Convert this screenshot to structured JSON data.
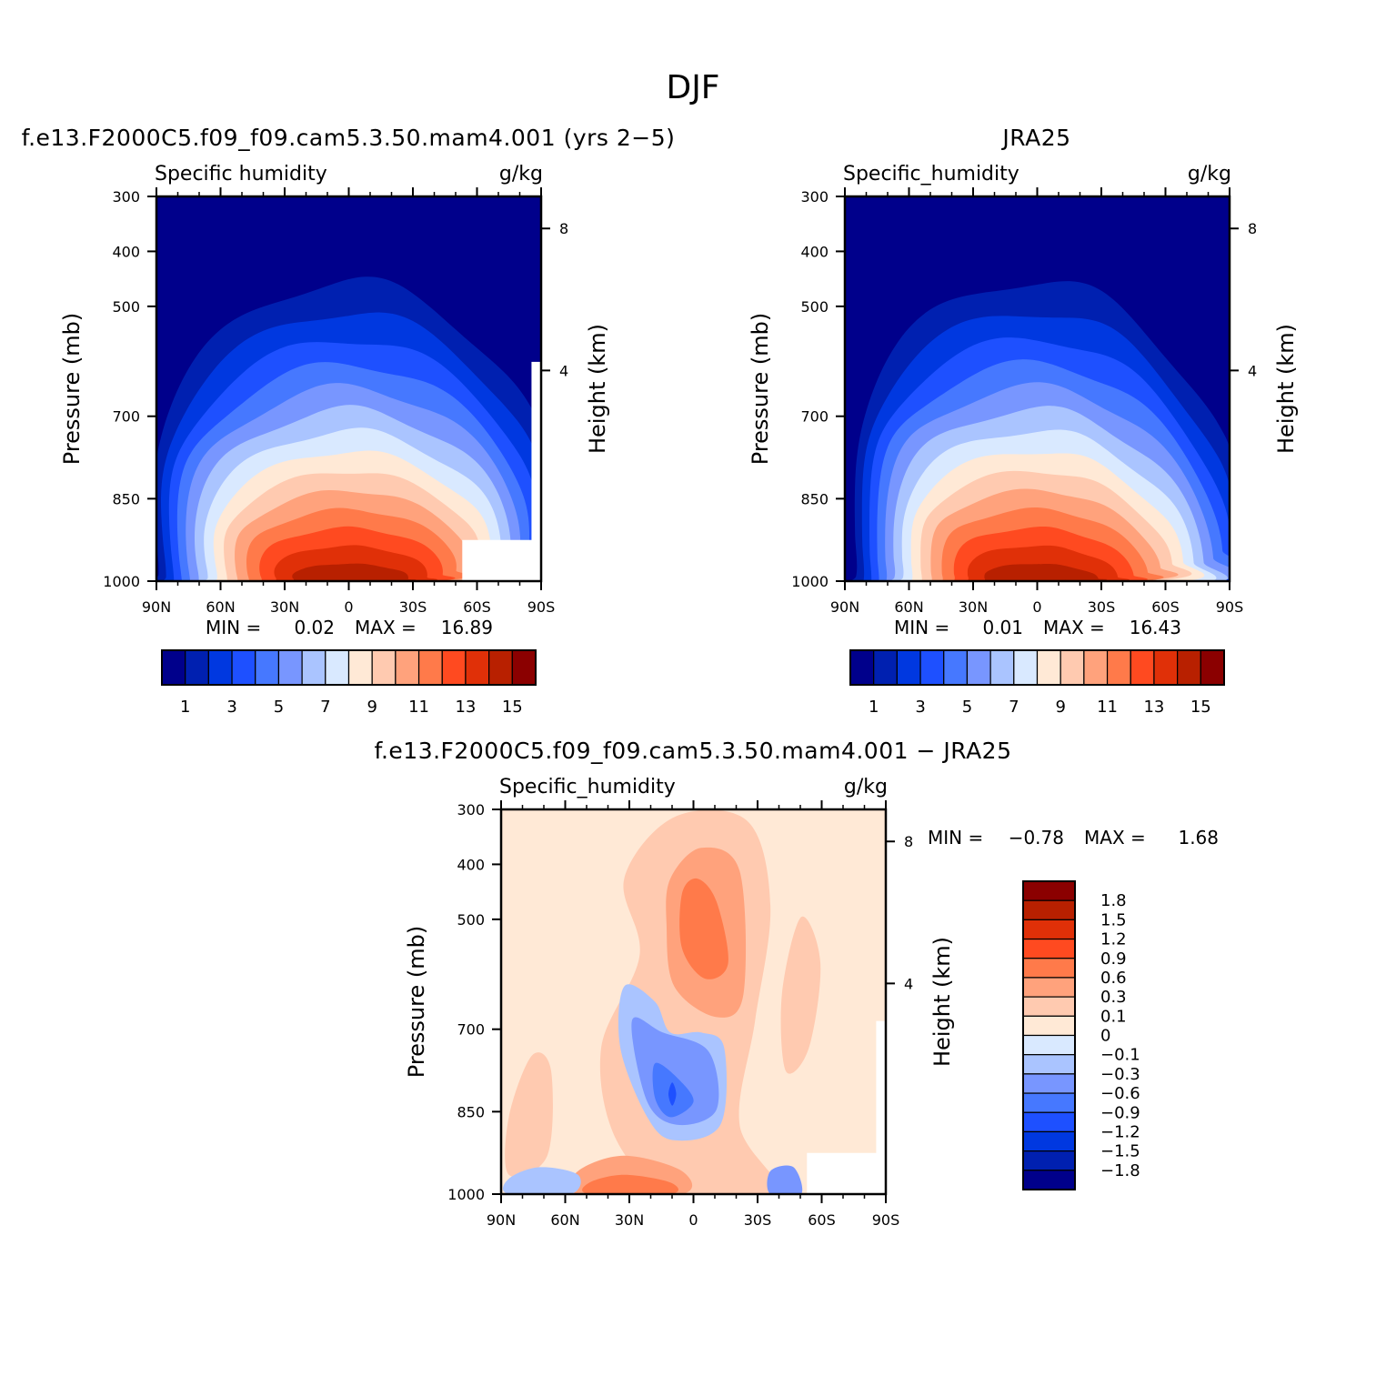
{
  "page_title": "DJF",
  "chart_data": [
    {
      "type": "contour",
      "id": "model",
      "title": "f.e13.F2000C5.f09_f09.cam5.3.50.mam4.001 (yrs 2−5)",
      "variable": "Specific humidity",
      "units": "g/kg",
      "xlabel": "",
      "ylabel": "Pressure (mb)",
      "y2label": "Height (km)",
      "xticks": [
        "90N",
        "60N",
        "30N",
        "0",
        "30S",
        "60S",
        "90S"
      ],
      "yticks": [
        "300",
        "400",
        "500",
        "700",
        "850",
        "1000"
      ],
      "y2ticks": [
        "8",
        "4"
      ],
      "min_label": "MIN =",
      "min": "0.02",
      "max_label": "MAX =",
      "max": "16.89",
      "peak_lat": 0,
      "peak_value": 16.89,
      "colorbar": {
        "orientation": "horizontal",
        "colors": [
          "#00008b",
          "#0020b0",
          "#0038e0",
          "#1e50ff",
          "#4678ff",
          "#7896ff",
          "#aac4ff",
          "#d9e9ff",
          "#ffe9d6",
          "#ffcab0",
          "#ffa27c",
          "#ff7a4a",
          "#ff4a20",
          "#e03008",
          "#b82000",
          "#8b0000"
        ],
        "labels": [
          "1",
          "3",
          "5",
          "7",
          "9",
          "11",
          "13",
          "15"
        ]
      }
    },
    {
      "type": "contour",
      "id": "obs",
      "title": "JRA25",
      "variable": "Specific_humidity",
      "units": "g/kg",
      "xlabel": "",
      "ylabel": "Pressure (mb)",
      "y2label": "Height (km)",
      "xticks": [
        "90N",
        "60N",
        "30N",
        "0",
        "30S",
        "60S",
        "90S"
      ],
      "yticks": [
        "300",
        "400",
        "500",
        "700",
        "850",
        "1000"
      ],
      "y2ticks": [
        "8",
        "4"
      ],
      "min_label": "MIN =",
      "min": "0.01",
      "max_label": "MAX =",
      "max": "16.43",
      "peak_lat": 0,
      "peak_value": 16.43,
      "colorbar": {
        "orientation": "horizontal",
        "colors": [
          "#00008b",
          "#0020b0",
          "#0038e0",
          "#1e50ff",
          "#4678ff",
          "#7896ff",
          "#aac4ff",
          "#d9e9ff",
          "#ffe9d6",
          "#ffcab0",
          "#ffa27c",
          "#ff7a4a",
          "#ff4a20",
          "#e03008",
          "#b82000",
          "#8b0000"
        ],
        "labels": [
          "1",
          "3",
          "5",
          "7",
          "9",
          "11",
          "13",
          "15"
        ]
      }
    },
    {
      "type": "contour",
      "id": "diff",
      "title": "f.e13.F2000C5.f09_f09.cam5.3.50.mam4.001 − JRA25",
      "variable": "Specific_humidity",
      "units": "g/kg",
      "xlabel": "",
      "ylabel": "Pressure (mb)",
      "y2label": "Height (km)",
      "xticks": [
        "90N",
        "60N",
        "30N",
        "0",
        "30S",
        "60S",
        "90S"
      ],
      "yticks": [
        "300",
        "400",
        "500",
        "700",
        "850",
        "1000"
      ],
      "y2ticks": [
        "8",
        "4"
      ],
      "min_label": "MIN =",
      "min": "−0.78",
      "max_label": "MAX =",
      "max": "1.68",
      "colorbar": {
        "orientation": "vertical",
        "colors": [
          "#8b0000",
          "#b82000",
          "#e03008",
          "#ff4a20",
          "#ff7a4a",
          "#ffa27c",
          "#ffcab0",
          "#ffe9d6",
          "#d9e9ff",
          "#aac4ff",
          "#7896ff",
          "#4678ff",
          "#1e50ff",
          "#0038e0",
          "#0020b0",
          "#00008b"
        ],
        "labels": [
          "1.8",
          "1.5",
          "1.2",
          "0.9",
          "0.6",
          "0.3",
          "0.1",
          "0",
          "−0.1",
          "−0.3",
          "−0.6",
          "−0.9",
          "−1.2",
          "−1.5",
          "−1.8"
        ]
      }
    }
  ]
}
